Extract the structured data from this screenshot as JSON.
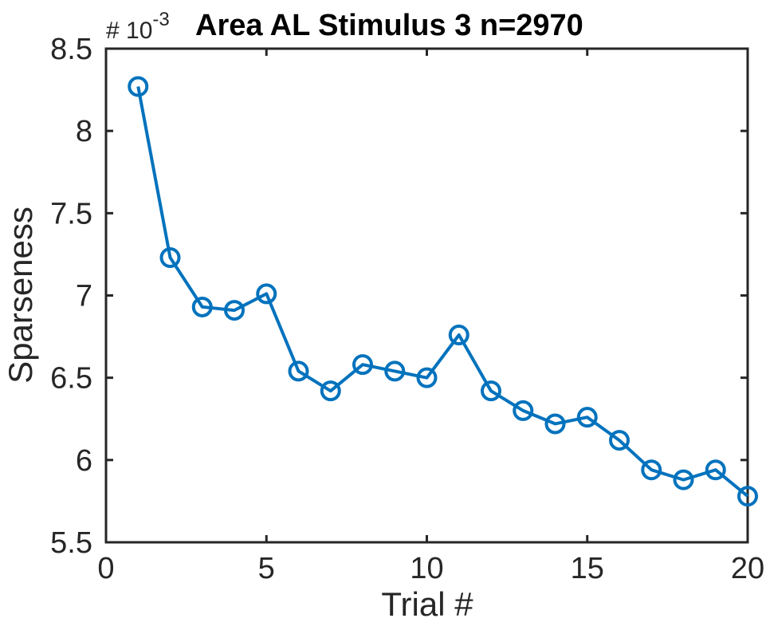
{
  "chart_data": {
    "type": "line",
    "title": "Area AL Stimulus 3 n=2970",
    "exponent_label": "# 10",
    "exponent_power": "-3",
    "xlabel": "Trial #",
    "ylabel": "Sparseness",
    "xlim": [
      0,
      20
    ],
    "ylim": [
      5.5,
      8.5
    ],
    "x_ticks": [
      0,
      5,
      10,
      15,
      20
    ],
    "x_tick_labels": [
      "0",
      "5",
      "10",
      "15",
      "20"
    ],
    "y_ticks": [
      5.5,
      6,
      6.5,
      7,
      7.5,
      8,
      8.5
    ],
    "y_tick_labels": [
      "5.5",
      "6",
      "6.5",
      "7",
      "7.5",
      "8",
      "8.5"
    ],
    "grid": false,
    "marker": "circle",
    "color": "#0072BD",
    "x": [
      1,
      2,
      3,
      4,
      5,
      6,
      7,
      8,
      9,
      10,
      11,
      12,
      13,
      14,
      15,
      16,
      17,
      18,
      19,
      20
    ],
    "y": [
      8.27,
      7.23,
      6.93,
      6.91,
      7.01,
      6.54,
      6.42,
      6.58,
      6.54,
      6.5,
      6.76,
      6.42,
      6.3,
      6.22,
      6.26,
      6.12,
      5.94,
      5.88,
      5.94,
      5.78
    ]
  }
}
